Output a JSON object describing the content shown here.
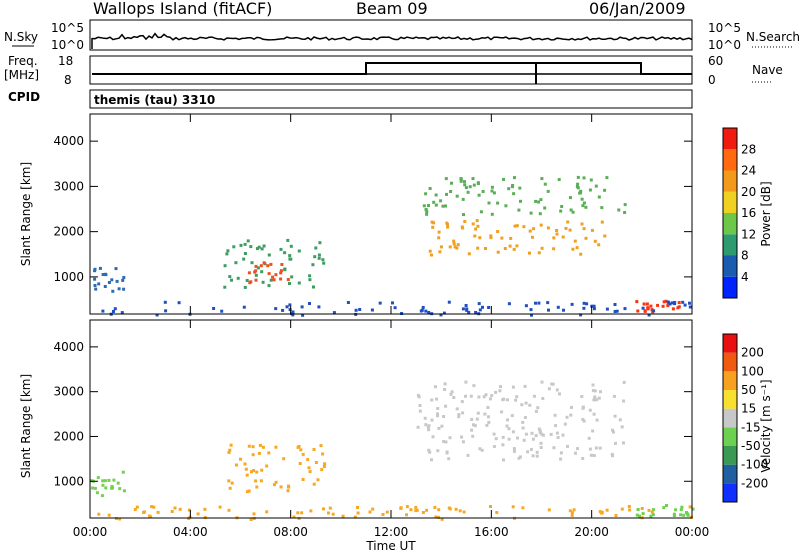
{
  "header": {
    "station": "Wallops Island (fitACF)",
    "beam": "Beam 09",
    "date": "06/Jan/2009"
  },
  "strip_labels": {
    "nsky": "N.Sky",
    "nsky_ticks": [
      "10^5",
      "10^0"
    ],
    "nsearch": "N.Search",
    "nsearch_ticks": [
      "10^5",
      "10^0"
    ],
    "freq_l1": "Freq.",
    "freq_l2": "[MHz]",
    "freq_ticks": [
      "18",
      "8"
    ],
    "nave": "Nave",
    "nave_ticks": [
      "60",
      "0"
    ],
    "cpid": "CPID",
    "cpid_value": "themis (tau) 3310"
  },
  "time_axis": {
    "label": "Time UT",
    "ticks": [
      "00:00",
      "04:00",
      "08:00",
      "12:00",
      "16:00",
      "20:00",
      "00:00"
    ]
  },
  "chart_data": [
    {
      "type": "heatmap",
      "name": "power",
      "x_range_hours": [
        0,
        24
      ],
      "ylabel": "Slant Range [km]",
      "ylim": [
        180,
        4600
      ],
      "y_ticks": [
        1000,
        2000,
        3000,
        4000
      ],
      "colorbar": {
        "label": "Power [dB]",
        "ticks": [
          "4",
          "8",
          "12",
          "16",
          "20",
          "24",
          "28"
        ],
        "colors": [
          "#0024ff",
          "#1a5cb0",
          "#2d9a70",
          "#6dc84a",
          "#f0d020",
          "#f39a1c",
          "#ff6a10",
          "#f01a0e"
        ]
      },
      "regions": [
        {
          "t": [
            0.0,
            1.4
          ],
          "r": [
            700,
            1250
          ],
          "color": "#2c6cb0"
        },
        {
          "t": [
            5.3,
            9.4
          ],
          "r": [
            800,
            1850
          ],
          "color": "#3d9c60"
        },
        {
          "t": [
            6.2,
            7.9
          ],
          "r": [
            900,
            1350
          ],
          "color": "#f05020"
        },
        {
          "t": [
            13.0,
            21.3
          ],
          "r": [
            2400,
            3250
          ],
          "color": "#5aae55"
        },
        {
          "t": [
            13.5,
            20.5
          ],
          "r": [
            1500,
            2300
          ],
          "color": "#f0a020"
        },
        {
          "t": [
            21.7,
            23.6
          ],
          "r": [
            250,
            500
          ],
          "color": "#ff3010"
        },
        {
          "t": [
            0.0,
            24.0
          ],
          "r": [
            180,
            480
          ],
          "color": "#2050c0"
        }
      ]
    },
    {
      "type": "heatmap",
      "name": "velocity",
      "x_range_hours": [
        0,
        24
      ],
      "ylabel": "Slant Range [km]",
      "ylim": [
        180,
        4600
      ],
      "y_ticks": [
        1000,
        2000,
        3000,
        4000
      ],
      "colorbar": {
        "label": "Velocity [m s⁻¹]",
        "ticks": [
          "200",
          "100",
          "50",
          "15",
          "-15",
          "-50",
          "-100",
          "-200"
        ],
        "colors": [
          "#1030ff",
          "#2060a0",
          "#3a9a55",
          "#6cd050",
          "#c8c8c8",
          "#f8e030",
          "#f8a020",
          "#f05a10",
          "#e81010"
        ]
      },
      "regions": [
        {
          "t": [
            0.0,
            1.4
          ],
          "r": [
            700,
            1250
          ],
          "color": "#76d050"
        },
        {
          "t": [
            5.3,
            9.4
          ],
          "r": [
            800,
            1850
          ],
          "color": "#f8a820"
        },
        {
          "t": [
            13.0,
            21.3
          ],
          "r": [
            1500,
            3250
          ],
          "color": "#c8c8c8"
        },
        {
          "t": [
            21.7,
            24.0
          ],
          "r": [
            250,
            500
          ],
          "color": "#6cd050"
        },
        {
          "t": [
            0.0,
            24.0
          ],
          "r": [
            180,
            480
          ],
          "color": "#f8a820"
        }
      ]
    }
  ],
  "colors": {
    "axis": "#000000",
    "gray": "#c8c8c8"
  }
}
